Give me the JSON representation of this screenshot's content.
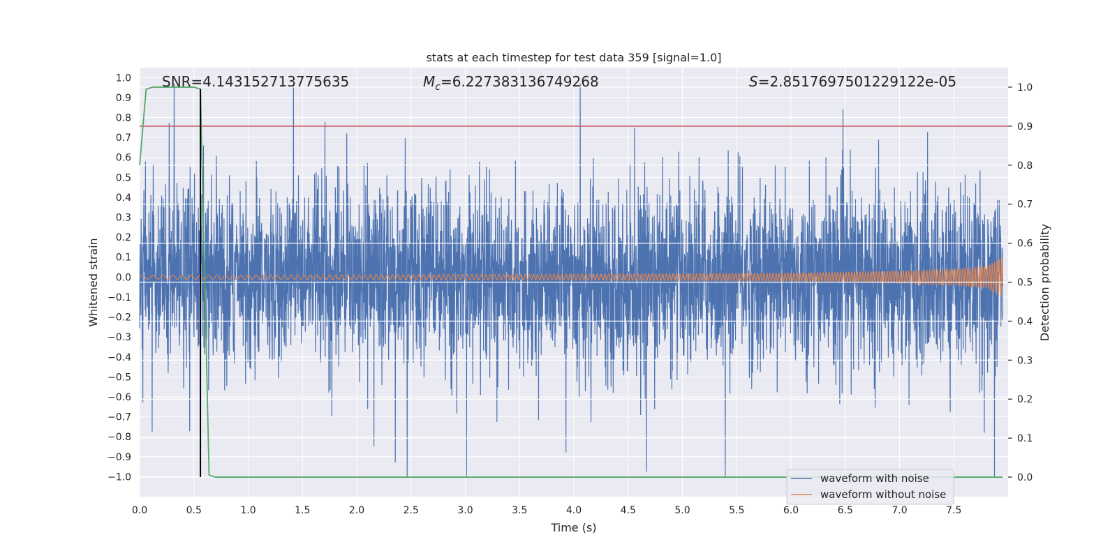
{
  "chart_data": {
    "type": "line",
    "title": "stats at each timestep for test data 359 [signal=1.0]",
    "xlabel": "Time (s)",
    "ylabel": "Whitened strain",
    "y2label": "Detection probability",
    "xlim": [
      0.0,
      8.0
    ],
    "ylim": [
      -1.1,
      1.05
    ],
    "y2lim": [
      -0.05,
      1.05
    ],
    "xticks": [
      "0.0",
      "0.5",
      "1.0",
      "1.5",
      "2.0",
      "2.5",
      "3.0",
      "3.5",
      "4.0",
      "4.5",
      "5.0",
      "5.5",
      "6.0",
      "6.5",
      "7.0",
      "7.5"
    ],
    "yticks": [
      "1.0",
      "0.9",
      "0.8",
      "0.7",
      "0.6",
      "0.5",
      "0.4",
      "0.3",
      "0.2",
      "0.1",
      "0.0",
      "−0.1",
      "−0.2",
      "−0.3",
      "−0.4",
      "−0.5",
      "−0.6",
      "−0.7",
      "−0.8",
      "−0.9",
      "−1.0"
    ],
    "y2ticks": [
      "1.0",
      "0.9",
      "0.8",
      "0.7",
      "0.6",
      "0.5",
      "0.4",
      "0.3",
      "0.2",
      "0.1",
      "0.0"
    ],
    "annotations": {
      "snr": "SNR=4.143152713775635",
      "mc_symbol": "M",
      "mc_sub": "c",
      "mc_value": "=6.227383136749268",
      "s_symbol": "S",
      "s_value": "=2.8517697501229122e-05"
    },
    "threshold": 0.9,
    "detection_time": 0.56,
    "series": [
      {
        "name": "waveform with noise",
        "color": "#4c72b0",
        "amplitude_range": [
          -1.0,
          0.97
        ]
      },
      {
        "name": "waveform without noise",
        "color": "#dd8452",
        "envelope": {
          "x": [
            0.0,
            2.0,
            4.0,
            6.0,
            7.0,
            7.5,
            7.8,
            7.95
          ],
          "amp": [
            0.01,
            0.012,
            0.015,
            0.02,
            0.03,
            0.04,
            0.055,
            0.1
          ]
        }
      },
      {
        "name": "detection probability",
        "color": "#55a868",
        "x": [
          0.0,
          0.06,
          0.12,
          0.2,
          0.3,
          0.4,
          0.5,
          0.56,
          0.64,
          0.7,
          7.95
        ],
        "y": [
          0.8,
          0.995,
          1.0,
          1.0,
          1.0,
          1.0,
          1.0,
          0.995,
          0.005,
          0.0,
          0.0
        ]
      }
    ],
    "legend": {
      "position": "bottom-right",
      "entries": [
        "waveform with noise",
        "waveform without noise"
      ]
    },
    "grid": true
  },
  "colors": {
    "background": "#eaeaf2",
    "grid": "#ffffff",
    "threshold": "#c44e52",
    "detection_line": "#000000"
  }
}
